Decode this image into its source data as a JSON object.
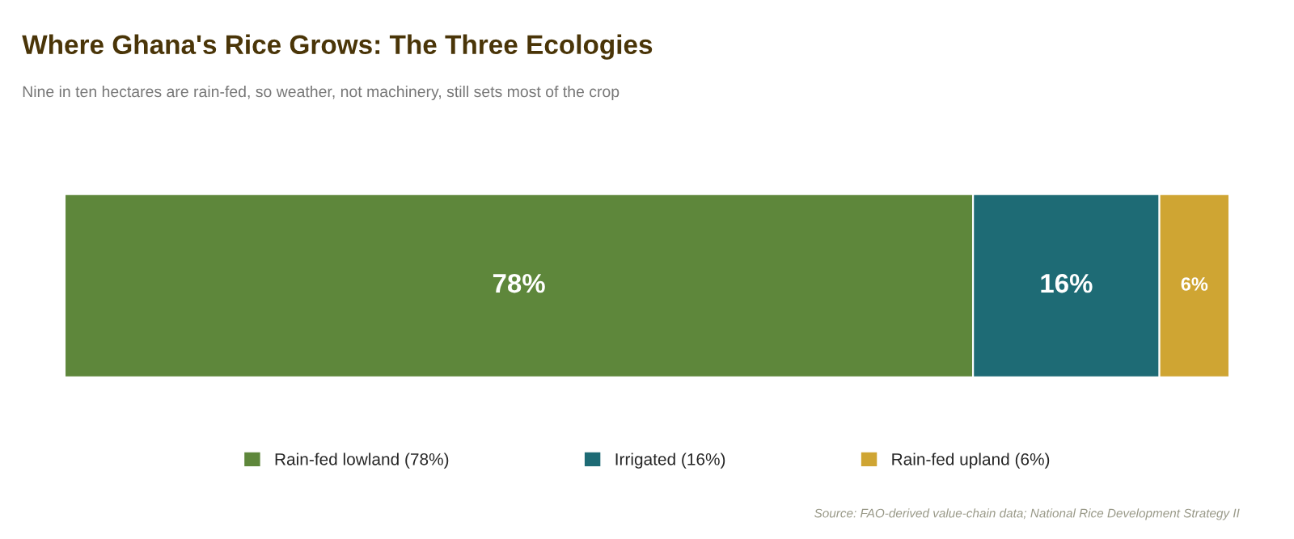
{
  "chart_data": {
    "type": "bar",
    "orientation": "horizontal",
    "stacked": true,
    "title": "Where Ghana's Rice Grows: The Three Ecologies",
    "subtitle": "Nine in ten hectares are rain-fed, so weather, not machinery, still sets most of the crop",
    "categories": [
      null
    ],
    "series": [
      {
        "name": "Rain-fed lowland (78%)",
        "color": "#5e873b",
        "values": [
          78
        ],
        "value_labels": [
          "78%"
        ]
      },
      {
        "name": "Irrigated (16%)",
        "color": "#1e6b75",
        "values": [
          16
        ],
        "value_labels": [
          "16%"
        ]
      },
      {
        "name": "Rain-fed upland (6%)",
        "color": "#cfa533",
        "values": [
          6
        ],
        "value_labels": [
          "6%"
        ]
      }
    ],
    "legend": "bottom",
    "annotations": [
      "Source: FAO-derived value-chain data; National Rice Development Strategy II"
    ]
  }
}
